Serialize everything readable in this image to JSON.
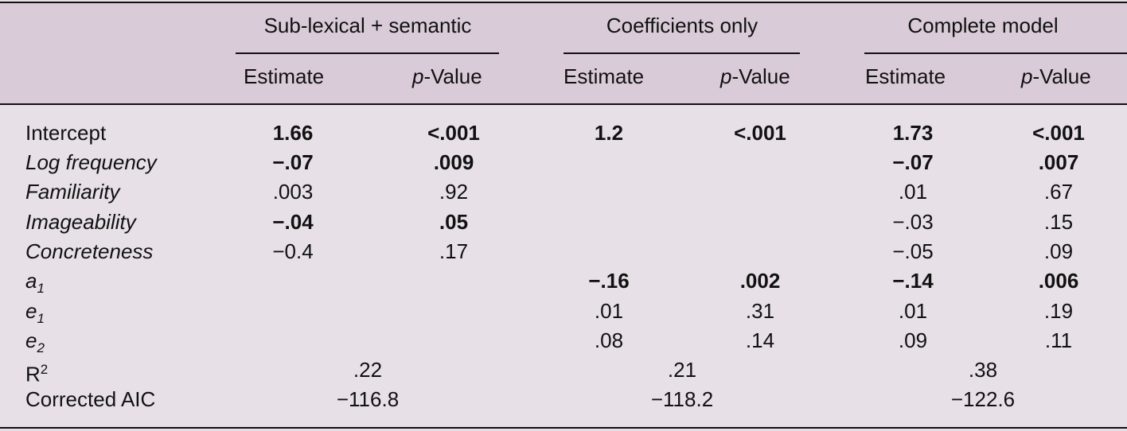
{
  "table": {
    "groups": [
      "Sub-lexical + semantic",
      "Coefficients only",
      "Complete model"
    ],
    "subheaders": [
      {
        "text": "Estimate"
      },
      {
        "em": "p",
        "text": "-Value"
      },
      {
        "text": "Estimate"
      },
      {
        "em": "p",
        "text": "-Value"
      },
      {
        "text": "Estimate"
      },
      {
        "em": "p",
        "text": "-Value"
      }
    ],
    "rows": [
      {
        "label": "Intercept",
        "italic": false,
        "cells": [
          {
            "text": "1.66",
            "bold": true
          },
          {
            "text": "<.001",
            "bold": true
          },
          {
            "text": "1.2",
            "bold": true
          },
          {
            "text": "<.001",
            "bold": true
          },
          {
            "text": "1.73",
            "bold": true
          },
          {
            "text": "<.001",
            "bold": true
          }
        ]
      },
      {
        "label": "Log frequency",
        "italic": true,
        "cells": [
          {
            "text": "−.07",
            "bold": true
          },
          {
            "text": ".009",
            "bold": true
          },
          null,
          null,
          {
            "text": "−.07",
            "bold": true
          },
          {
            "text": ".007",
            "bold": true
          }
        ]
      },
      {
        "label": "Familiarity",
        "italic": true,
        "cells": [
          {
            "text": ".003",
            "bold": false
          },
          {
            "text": ".92",
            "bold": false
          },
          null,
          null,
          {
            "text": ".01",
            "bold": false
          },
          {
            "text": ".67",
            "bold": false
          }
        ]
      },
      {
        "label": "Imageability",
        "italic": true,
        "cells": [
          {
            "text": "−.04",
            "bold": true
          },
          {
            "text": ".05",
            "bold": true
          },
          null,
          null,
          {
            "text": "−.03",
            "bold": false
          },
          {
            "text": ".15",
            "bold": false
          }
        ]
      },
      {
        "label": "Concreteness",
        "italic": true,
        "cells": [
          {
            "text": "−0.4",
            "bold": false
          },
          {
            "text": ".17",
            "bold": false
          },
          null,
          null,
          {
            "text": "−.05",
            "bold": false
          },
          {
            "text": ".09",
            "bold": false
          }
        ]
      },
      {
        "label": "a",
        "sub": "1",
        "italic": true,
        "cells": [
          null,
          null,
          {
            "text": "−.16",
            "bold": true
          },
          {
            "text": ".002",
            "bold": true
          },
          {
            "text": "−.14",
            "bold": true
          },
          {
            "text": ".006",
            "bold": true
          }
        ]
      },
      {
        "label": "e",
        "sub": "1",
        "italic": true,
        "cells": [
          null,
          null,
          {
            "text": ".01",
            "bold": false
          },
          {
            "text": ".31",
            "bold": false
          },
          {
            "text": ".01",
            "bold": false
          },
          {
            "text": ".19",
            "bold": false
          }
        ]
      },
      {
        "label": "e",
        "sub": "2",
        "italic": true,
        "cells": [
          null,
          null,
          {
            "text": ".08",
            "bold": false
          },
          {
            "text": ".14",
            "bold": false
          },
          {
            "text": ".09",
            "bold": false
          },
          {
            "text": ".11",
            "bold": false
          }
        ]
      },
      {
        "label": "R",
        "sup": "2",
        "italic": false,
        "spans": [
          ".22",
          ".21",
          ".38"
        ]
      },
      {
        "label": "Corrected AIC",
        "italic": false,
        "spans": [
          "−116.8",
          "−118.2",
          "−122.6"
        ]
      }
    ]
  }
}
